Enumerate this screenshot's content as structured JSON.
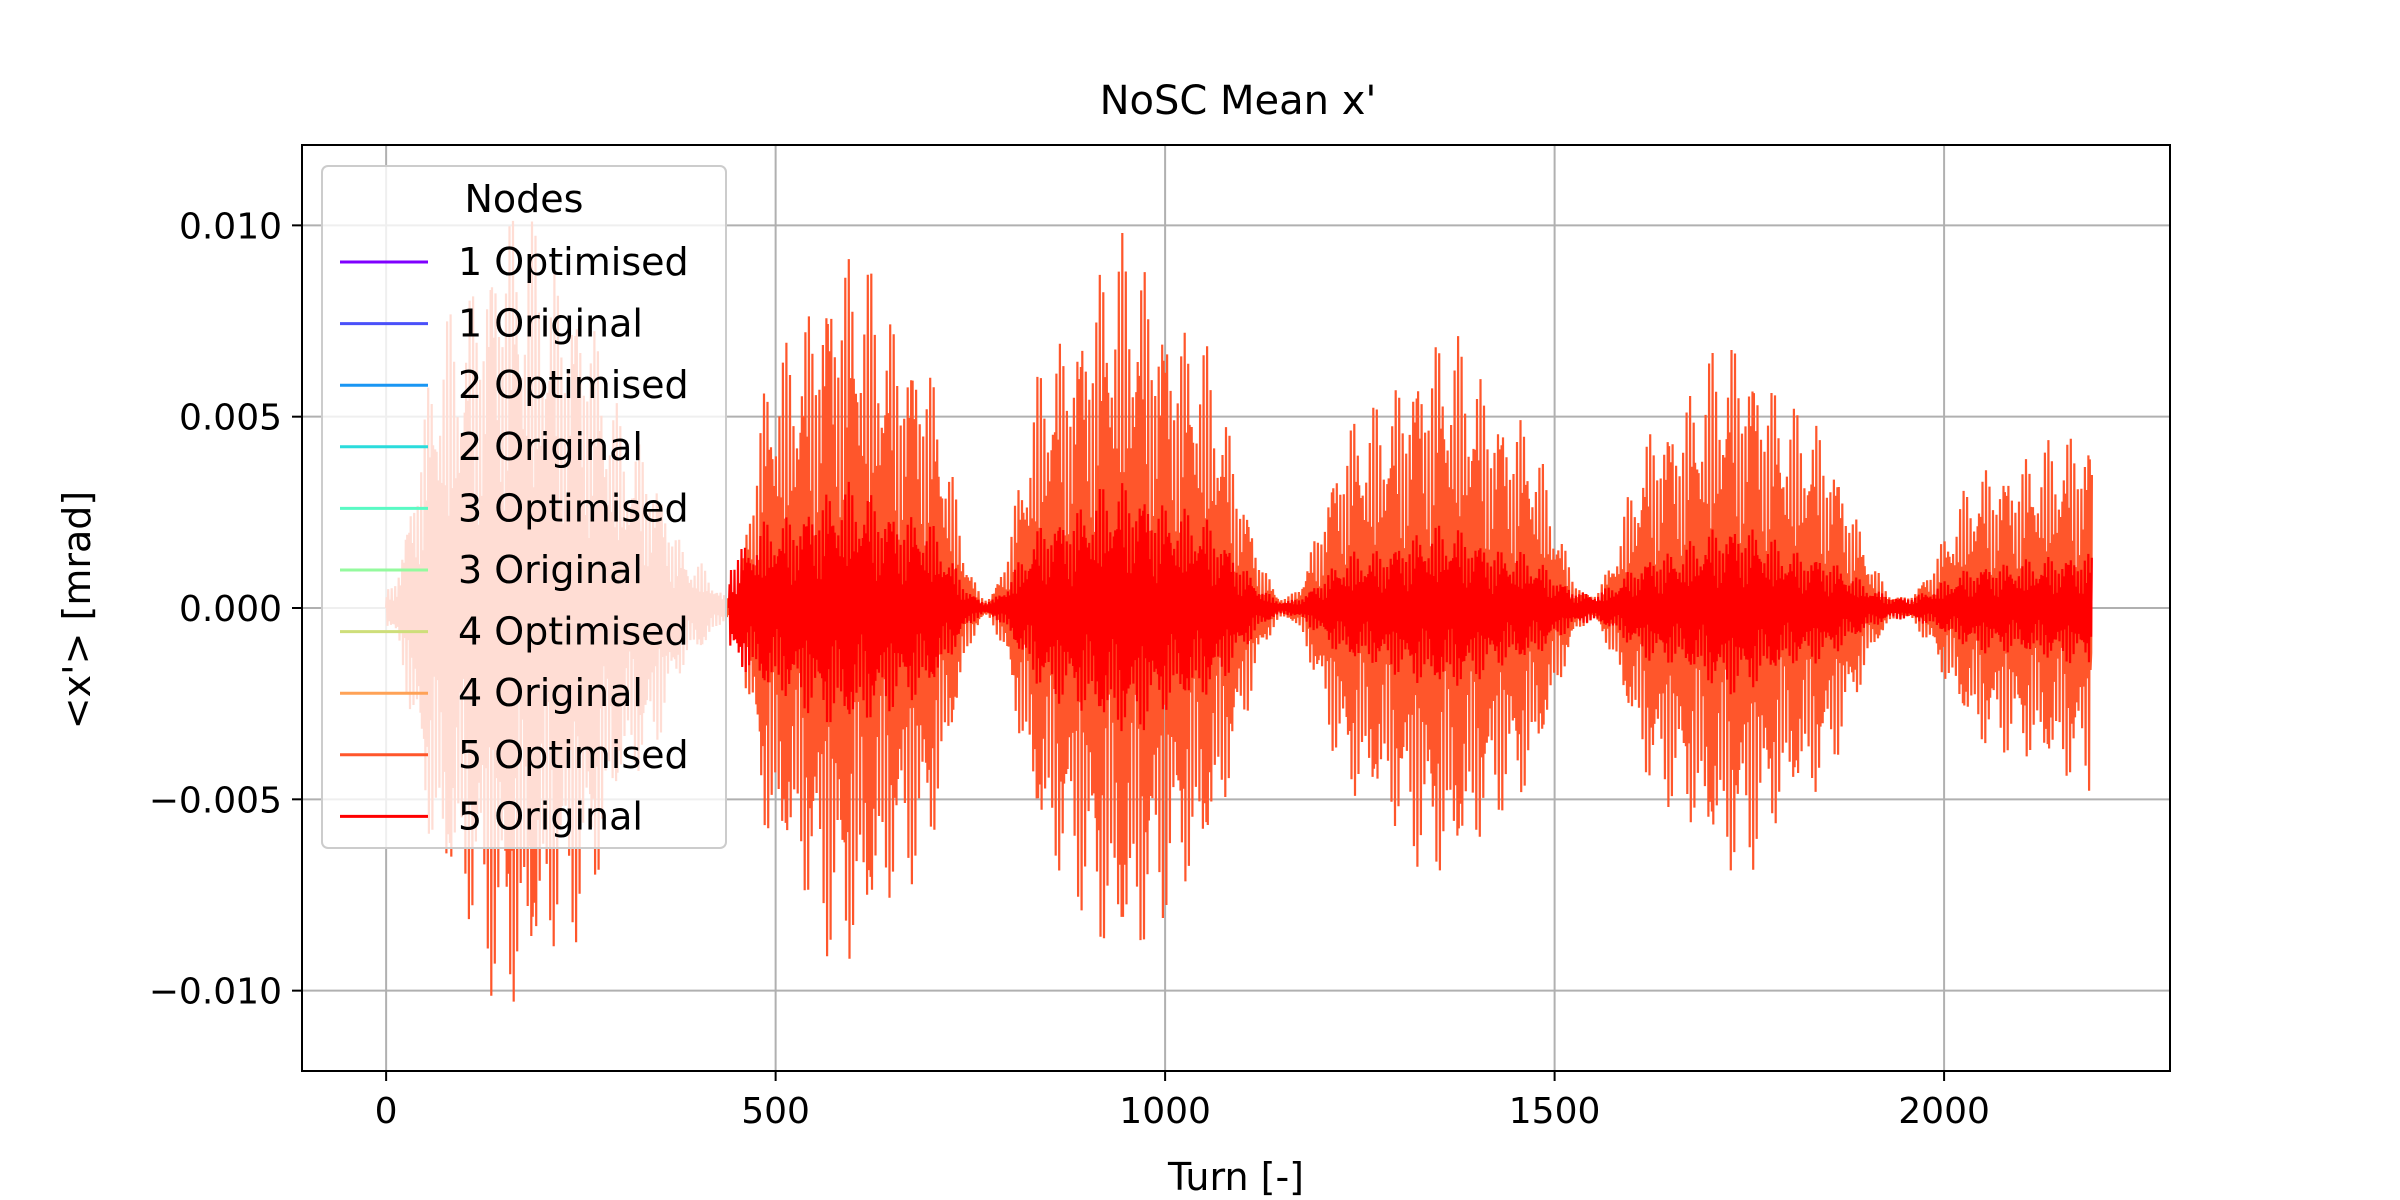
{
  "chart_data": {
    "type": "line",
    "title": "NoSC Mean x'",
    "xlabel": "Turn [-]",
    "ylabel": "<x'> [mrad]",
    "xlim": [
      -108,
      2290
    ],
    "ylim": [
      -0.0121,
      0.0121
    ],
    "xticks": [
      0,
      500,
      1000,
      1500,
      2000
    ],
    "xtick_labels": [
      "0",
      "500",
      "1000",
      "1500",
      "2000"
    ],
    "yticks": [
      -0.01,
      -0.005,
      0.0,
      0.005,
      0.01
    ],
    "ytick_labels": [
      "−0.010",
      "−0.005",
      "0.000",
      "0.005",
      "0.010"
    ],
    "grid": true,
    "legend": {
      "title": "Nodes",
      "placement": "upper-left",
      "entries": [
        {
          "name": "1 Optimised",
          "color": "#7f00ff"
        },
        {
          "name": "1 Original",
          "color": "#4a50f9"
        },
        {
          "name": "2 Optimised",
          "color": "#1996f3"
        },
        {
          "name": "2 Original",
          "color": "#2adcdc"
        },
        {
          "name": "3 Optimised",
          "color": "#5afac4"
        },
        {
          "name": "3 Original",
          "color": "#94fa9e"
        },
        {
          "name": "4 Optimised",
          "color": "#cede7a"
        },
        {
          "name": "4 Original",
          "color": "#ffa256"
        },
        {
          "name": "5 Optimised",
          "color": "#ff562b"
        },
        {
          "name": "5 Original",
          "color": "#ff0000"
        }
      ]
    },
    "series": [
      {
        "name": "5 Optimised",
        "color": "#ff562b",
        "turn_range": [
          0,
          2190
        ],
        "envelope_x": [
          0,
          80,
          160,
          240,
          320,
          400,
          440,
          500,
          590,
          680,
          770,
          860,
          945,
          1030,
          1155,
          1250,
          1360,
          1450,
          1545,
          1640,
          1730,
          1820,
          1945,
          2060,
          2190
        ],
        "envelope_max": [
          0.0005,
          0.0078,
          0.0108,
          0.0088,
          0.0045,
          0.0012,
          0.0003,
          0.0068,
          0.0096,
          0.0072,
          0.0003,
          0.0072,
          0.0098,
          0.0075,
          0.0003,
          0.0052,
          0.0073,
          0.0052,
          0.0004,
          0.0052,
          0.0072,
          0.0052,
          0.0003,
          0.0038,
          0.0048
        ],
        "oscillation_period_turns": 8
      },
      {
        "name": "5 Original",
        "color": "#ff0000",
        "turn_range": [
          440,
          2190
        ],
        "envelope_x": [
          440,
          500,
          590,
          680,
          770,
          860,
          945,
          1030,
          1155,
          1250,
          1360,
          1450,
          1545,
          1640,
          1730,
          1820,
          1945,
          2060,
          2190
        ],
        "envelope_max": [
          0.0015,
          0.0024,
          0.0033,
          0.0025,
          0.0002,
          0.0025,
          0.0034,
          0.0026,
          0.0002,
          0.0015,
          0.0022,
          0.0015,
          0.0004,
          0.0015,
          0.0023,
          0.0015,
          0.0003,
          0.0012,
          0.0015
        ],
        "oscillation_period_turns": 8
      }
    ]
  }
}
